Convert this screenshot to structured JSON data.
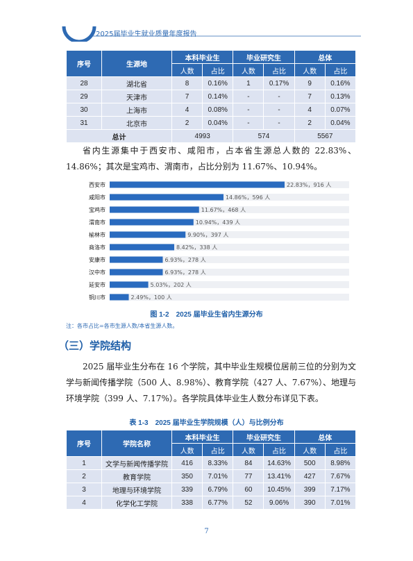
{
  "header": {
    "title": "2025届毕业生就业质量年度报告"
  },
  "table1": {
    "col1": "序号",
    "col2": "生源地",
    "groups": [
      "本科毕业生",
      "毕业研究生",
      "总体"
    ],
    "subheaders": [
      "人数",
      "占比",
      "人数",
      "占比",
      "人数",
      "占比"
    ],
    "rows": [
      [
        "28",
        "湖北省",
        "8",
        "0.16%",
        "1",
        "0.17%",
        "9",
        "0.16%"
      ],
      [
        "29",
        "天津市",
        "7",
        "0.14%",
        "-",
        "-",
        "7",
        "0.13%"
      ],
      [
        "30",
        "上海市",
        "4",
        "0.08%",
        "-",
        "-",
        "4",
        "0.07%"
      ],
      [
        "31",
        "北京市",
        "2",
        "0.04%",
        "-",
        "-",
        "2",
        "0.04%"
      ]
    ],
    "total": {
      "label": "总计",
      "values": [
        "4993",
        "574",
        "5567"
      ]
    }
  },
  "paragraph1": "省内生源集中于西安市、咸阳市，占本省生源总人数的 22.83%、14.86%；其次是宝鸡市、渭南市，占比分别为 11.67%、10.94%。",
  "chart_data": {
    "type": "bar",
    "orientation": "horizontal",
    "color": "#2a6bbf",
    "categories": [
      "西安市",
      "咸阳市",
      "宝鸡市",
      "渭南市",
      "榆林市",
      "商洛市",
      "安康市",
      "汉中市",
      "延安市",
      "铜川市"
    ],
    "values": [
      916,
      596,
      468,
      439,
      397,
      338,
      278,
      278,
      202,
      100
    ],
    "value_labels": [
      "22.83%，916 人",
      "14.86%，596 人",
      "11.67%，468 人",
      "10.94%，439 人",
      "9.90%，397 人",
      "8.42%，338 人",
      "6.93%，278 人",
      "6.93%，278 人",
      "5.03%，202 人",
      "2.49%，100 人"
    ],
    "caption": "图 1-2　2025 届毕业生省内生源分布",
    "note": "注：各市占比=各市生源人数/本省生源人数。"
  },
  "section_heading": "（三）学院结构",
  "paragraph2": "2025 届毕业生分布在 16 个学院，其中毕业生规模位居前三位的分别为文学与新闻传播学院（500 人、8.98%）、教育学院（427 人、7.67%）、地理与环境学院（399 人、7.17%）。各学院具体毕业生人数分布详见下表。",
  "table2": {
    "caption": "表 1-3　2025 届毕业生学院规模（人）与比例分布",
    "col1": "序号",
    "col2": "学院名称",
    "groups": [
      "本科毕业生",
      "毕业研究生",
      "总体"
    ],
    "subheaders": [
      "人数",
      "占比",
      "人数",
      "占比",
      "人数",
      "占比"
    ],
    "rows": [
      [
        "1",
        "文学与新闻传播学院",
        "416",
        "8.33%",
        "84",
        "14.63%",
        "500",
        "8.98%"
      ],
      [
        "2",
        "教育学院",
        "350",
        "7.01%",
        "77",
        "13.41%",
        "427",
        "7.67%"
      ],
      [
        "3",
        "地理与环境学院",
        "339",
        "6.79%",
        "60",
        "10.45%",
        "399",
        "7.17%"
      ],
      [
        "4",
        "化学化工学院",
        "338",
        "6.77%",
        "52",
        "9.06%",
        "390",
        "7.01%"
      ]
    ]
  },
  "page_number": "7"
}
